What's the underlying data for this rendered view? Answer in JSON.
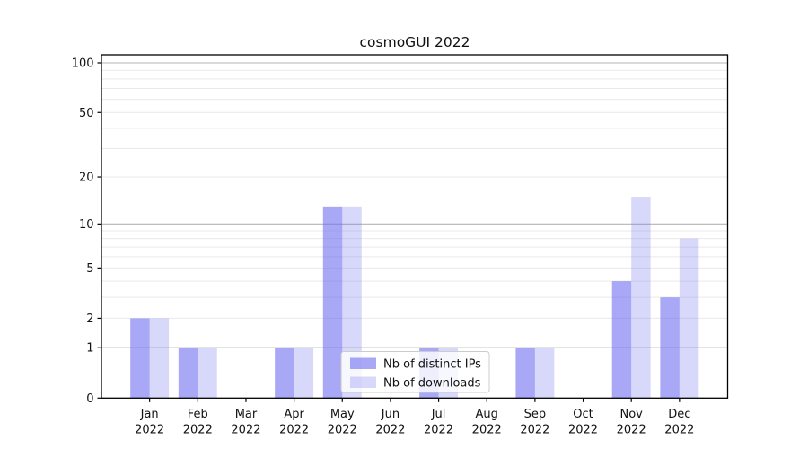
{
  "chart_data": {
    "type": "bar",
    "title": "cosmoGUI 2022",
    "xlabel": "",
    "ylabel": "",
    "x_tick_year": "2022",
    "categories": [
      "Jan",
      "Feb",
      "Mar",
      "Apr",
      "May",
      "Jun",
      "Jul",
      "Aug",
      "Sep",
      "Oct",
      "Nov",
      "Dec"
    ],
    "series": [
      {
        "name": "Nb of distinct IPs",
        "color": "rgba(110,110,240,0.60)",
        "values": [
          2,
          1,
          0,
          1,
          13,
          0,
          1,
          0,
          1,
          0,
          4,
          3
        ]
      },
      {
        "name": "Nb of downloads",
        "color": "rgba(110,110,240,0.27)",
        "values": [
          2,
          1,
          0,
          1,
          13,
          0,
          1,
          0,
          1,
          0,
          15,
          8
        ]
      }
    ],
    "yscale": "log1p",
    "ylim": [
      0,
      110
    ],
    "y_ticks": [
      0,
      1,
      2,
      5,
      10,
      20,
      50,
      100
    ],
    "y_major_gridlines": [
      1,
      10,
      100
    ],
    "y_minor_gridlines": [
      2,
      3,
      4,
      5,
      6,
      7,
      8,
      9,
      20,
      30,
      40,
      50,
      60,
      70,
      80,
      90
    ],
    "grid": true,
    "legend": {
      "position": "lower-center"
    },
    "colors": {
      "spine": "#000000",
      "major_grid": "#b4b4b4",
      "minor_grid": "#e9e9e9",
      "legend_border": "#cccccc",
      "legend_bg": "rgba(255,255,255,0.8)",
      "text": "#111111"
    }
  }
}
